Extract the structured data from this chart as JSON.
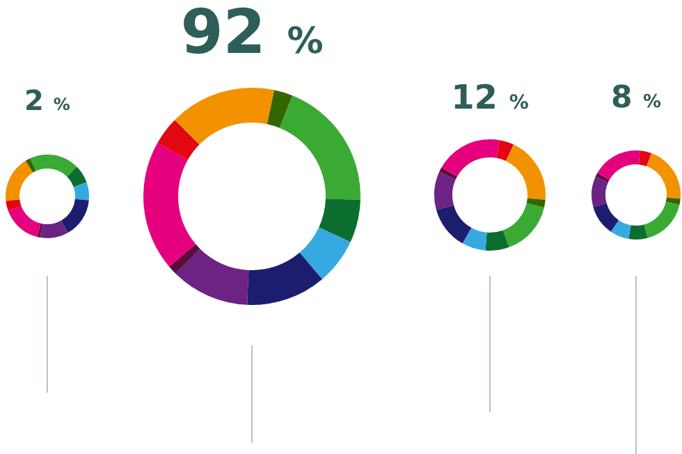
{
  "chart_data": [
    {
      "type": "donut",
      "title": "2 %",
      "categories": [
        null,
        null,
        null,
        null,
        null,
        null,
        null,
        null,
        null,
        null,
        null
      ],
      "values": [
        12.5,
        7,
        7,
        15.3,
        11,
        1,
        15.5,
        4,
        18,
        2,
        6.7
      ],
      "colors": [
        "#3aaa35",
        "#0b6e2e",
        "#36a9e1",
        "#1d1d70",
        "#6c2383",
        "#5a0c3c",
        "#e5007e",
        "#e30613",
        "#f39200",
        "#336600",
        "#3aaa35"
      ]
    },
    {
      "type": "donut",
      "title": "92 %",
      "categories": [
        null,
        null,
        null,
        null,
        null,
        null,
        null,
        null,
        null,
        null,
        null
      ],
      "values": [
        3.3,
        2.8,
        19.4,
        6.4,
        6.9,
        11.9,
        11.7,
        1.4,
        19.4,
        4.2,
        12.6
      ],
      "colors": [
        "#f39200",
        "#336600",
        "#3aaa35",
        "#0b6e2e",
        "#36a9e1",
        "#1d1d70",
        "#6c2383",
        "#5a0c3c",
        "#e5007e",
        "#e30613",
        "#f39200"
      ]
    },
    {
      "type": "donut",
      "title": "12 %",
      "categories": [
        null,
        null,
        null,
        null,
        null,
        null,
        null,
        null,
        null,
        null,
        null
      ],
      "values": [
        2.8,
        4.2,
        19.4,
        2.2,
        15.8,
        6.9,
        6.9,
        12.5,
        11.1,
        1.4,
        16.8
      ],
      "colors": [
        "#e5007e",
        "#e30613",
        "#f39200",
        "#336600",
        "#3aaa35",
        "#0b6e2e",
        "#36a9e1",
        "#1d1d70",
        "#6c2383",
        "#5a0c3c",
        "#e5007e"
      ]
    },
    {
      "type": "donut",
      "title": "8 %",
      "categories": [
        null,
        null,
        null,
        null,
        null,
        null,
        null,
        null,
        null,
        null,
        null
      ],
      "values": [
        1.4,
        4.2,
        20.8,
        2.2,
        17.2,
        6.9,
        6.9,
        11.1,
        11.1,
        1.4,
        16.8
      ],
      "colors": [
        "#e5007e",
        "#e30613",
        "#f39200",
        "#336600",
        "#3aaa35",
        "#0b6e2e",
        "#36a9e1",
        "#1d1d70",
        "#6c2383",
        "#5a0c3c",
        "#e5007e"
      ]
    }
  ]
}
